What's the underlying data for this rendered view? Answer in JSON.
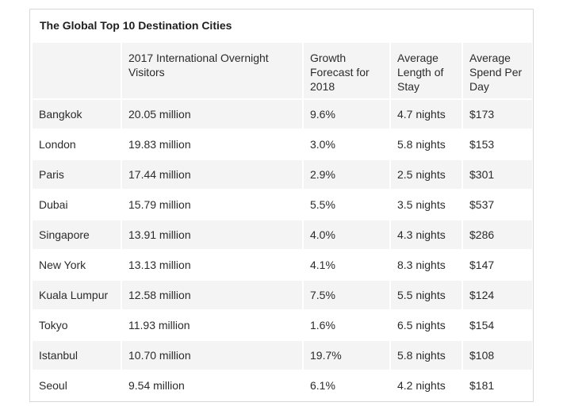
{
  "title": "The Global Top 10 Destination Cities",
  "table": {
    "headers": [
      "",
      "2017 International Overnight Visitors",
      "Growth Forecast for 2018",
      "Average Length of Stay",
      "Average Spend Per Day"
    ],
    "rows": [
      [
        "Bangkok",
        "20.05 million",
        "9.6%",
        "4.7 nights",
        "$173"
      ],
      [
        "London",
        "19.83 million",
        "3.0%",
        "5.8 nights",
        "$153"
      ],
      [
        "Paris",
        "17.44 million",
        "2.9%",
        "2.5 nights",
        "$301"
      ],
      [
        "Dubai",
        "15.79 million",
        "5.5%",
        "3.5 nights",
        "$537"
      ],
      [
        "Singapore",
        "13.91 million",
        "4.0%",
        "4.3 nights",
        "$286"
      ],
      [
        "New York",
        "13.13 million",
        "4.1%",
        "8.3 nights",
        "$147"
      ],
      [
        "Kuala Lumpur",
        "12.58 million",
        "7.5%",
        "5.5 nights",
        "$124"
      ],
      [
        "Tokyo",
        "11.93 million",
        "1.6%",
        "6.5 nights",
        "$154"
      ],
      [
        "Istanbul",
        "10.70 million",
        "19.7%",
        "5.8 nights",
        "$108"
      ],
      [
        "Seoul",
        "9.54 million",
        "6.1%",
        "4.2 nights",
        "$181"
      ]
    ]
  }
}
